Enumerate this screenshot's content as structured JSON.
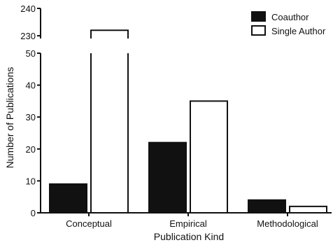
{
  "chart_data": {
    "type": "bar",
    "title": "",
    "xlabel": "Publication Kind",
    "ylabel": "Number of Publications",
    "categories": [
      "Conceptual",
      "Empirical",
      "Methodological"
    ],
    "series": [
      {
        "name": "Coauthor",
        "values": [
          9,
          22,
          4
        ],
        "color": "#111111"
      },
      {
        "name": "Single Author",
        "values": [
          232,
          35,
          2
        ],
        "color": "#ffffff"
      }
    ],
    "axis_break": {
      "lower_range": [
        0,
        50
      ],
      "upper_range": [
        229,
        240
      ]
    },
    "yticks_lower": [
      "0",
      "10",
      "20",
      "30",
      "40",
      "50"
    ],
    "yticks_upper": [
      "230",
      "240"
    ],
    "grid": false,
    "legend_position": "top-right"
  }
}
